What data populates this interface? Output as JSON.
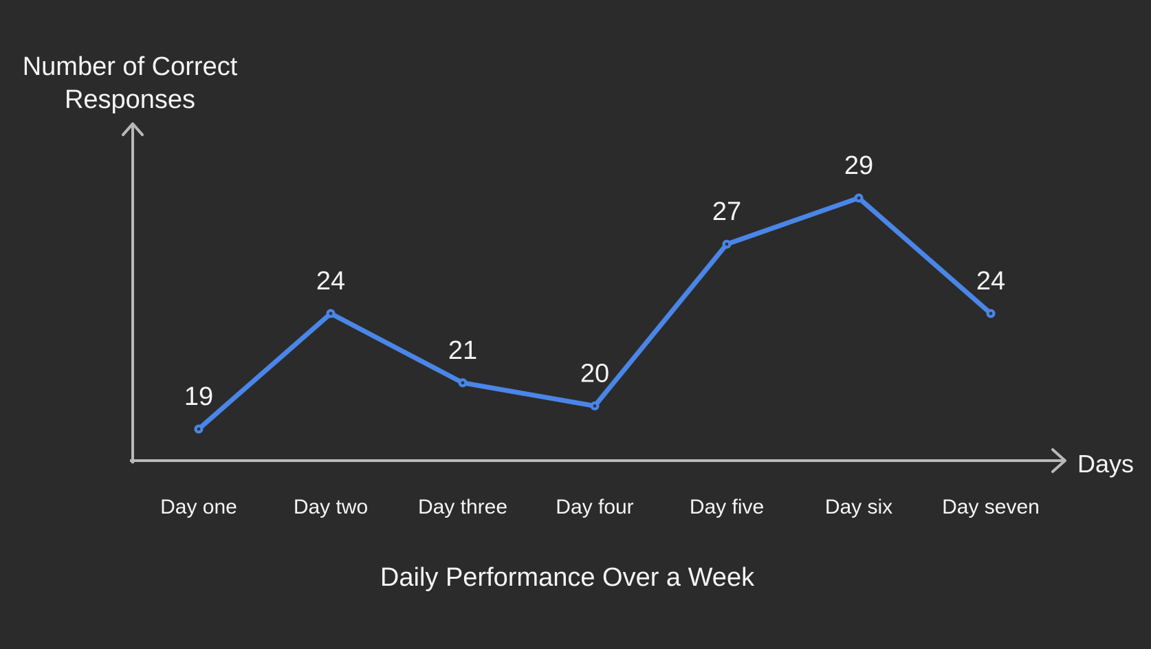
{
  "chart_data": {
    "type": "line",
    "title": "Daily Performance Over a Week",
    "xlabel": "Days",
    "ylabel": "Number of Correct Responses",
    "ylabel_lines": [
      "Number of Correct",
      "Responses"
    ],
    "categories": [
      "Day one",
      "Day two",
      "Day three",
      "Day four",
      "Day five",
      "Day six",
      "Day seven"
    ],
    "values": [
      19,
      24,
      21,
      20,
      27,
      29,
      24
    ],
    "data_labels": [
      "19",
      "24",
      "21",
      "20",
      "27",
      "29",
      "24"
    ],
    "grid": false,
    "legend_position": "none",
    "axis_ticks": "none",
    "axis_arrows": true,
    "colors": {
      "background": "#2b2b2b",
      "line": "#4a86e8",
      "marker_core": "#2c3547",
      "axis": "#b9b9b9",
      "text": "#f5f5f5"
    }
  }
}
